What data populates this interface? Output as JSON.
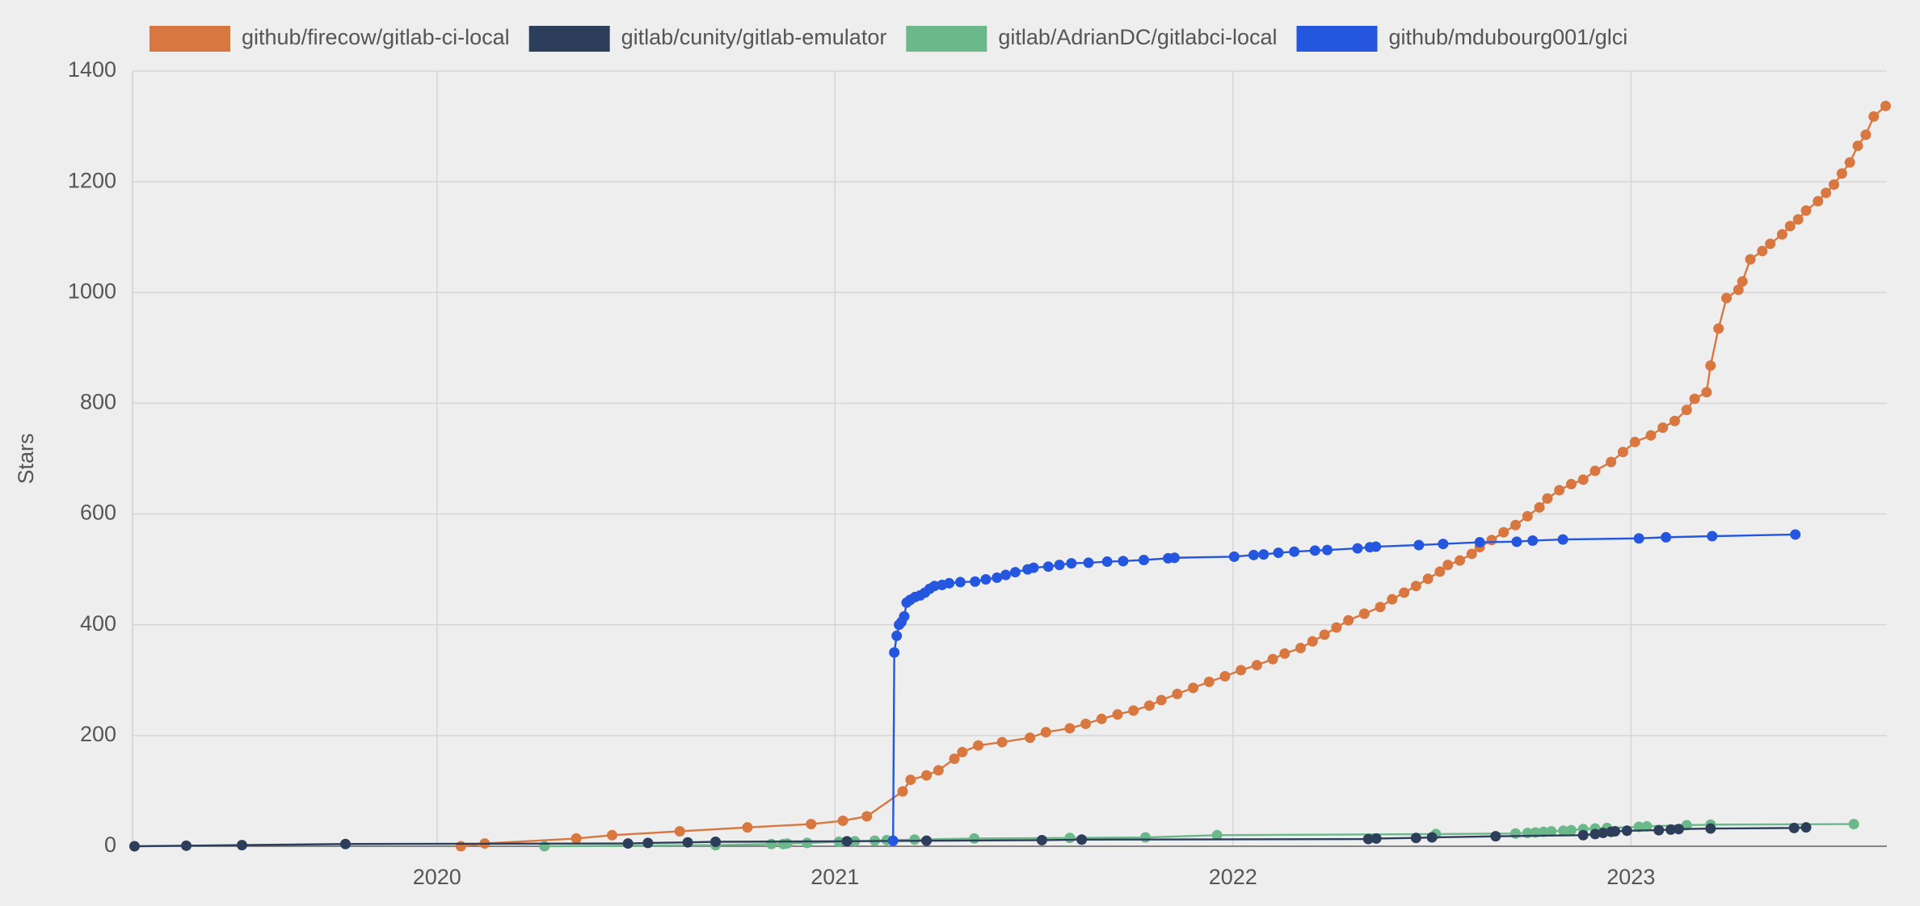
{
  "chart_data": {
    "type": "line",
    "y_label": "Stars",
    "legend": "top",
    "grid": true,
    "xlim": [
      2019.235,
      2023.643
    ],
    "xticks": [
      2020,
      2021,
      2022,
      2023
    ],
    "ylim": [
      0,
      1400
    ],
    "yticks": [
      0,
      200,
      400,
      600,
      800,
      1000,
      1200,
      1400
    ],
    "series": [
      {
        "name": "github/firecow/gitlab-ci-local",
        "color": "#d8773f",
        "x": [
          2020.06,
          2020.12,
          2020.35,
          2020.44,
          2020.61,
          2020.78,
          2020.94,
          2021.02,
          2021.08,
          2021.17,
          2021.19,
          2021.23,
          2021.26,
          2021.3,
          2021.32,
          2021.36,
          2021.42,
          2021.49,
          2021.53,
          2021.59,
          2021.63,
          2021.67,
          2021.71,
          2021.75,
          2021.79,
          2021.82,
          2021.86,
          2021.9,
          2021.94,
          2021.98,
          2022.02,
          2022.06,
          2022.1,
          2022.13,
          2022.17,
          2022.2,
          2022.23,
          2022.26,
          2022.29,
          2022.33,
          2022.37,
          2022.4,
          2022.43,
          2022.46,
          2022.49,
          2022.52,
          2022.54,
          2022.57,
          2022.6,
          2022.62,
          2022.65,
          2022.68,
          2022.71,
          2022.74,
          2022.77,
          2022.79,
          2022.82,
          2022.85,
          2022.88,
          2022.91,
          2022.95,
          2022.98,
          2023.01,
          2023.05,
          2023.08,
          2023.11,
          2023.14,
          2023.16,
          2023.19,
          2023.2,
          2023.22,
          2023.24,
          2023.27,
          2023.28,
          2023.3,
          2023.33,
          2023.35,
          2023.38,
          2023.4,
          2023.42,
          2023.44,
          2023.47,
          2023.49,
          2023.51,
          2023.53,
          2023.55,
          2023.57,
          2023.59,
          2023.61,
          2023.64
        ],
        "values": [
          0,
          5,
          14,
          20,
          27,
          34,
          40,
          46,
          54,
          99,
          120,
          128,
          137,
          158,
          170,
          182,
          188,
          196,
          206,
          213,
          221,
          230,
          238,
          245,
          254,
          264,
          275,
          286,
          297,
          307,
          318,
          327,
          338,
          348,
          358,
          370,
          382,
          395,
          408,
          420,
          432,
          446,
          458,
          470,
          483,
          496,
          508,
          516,
          528,
          540,
          553,
          567,
          580,
          596,
          612,
          628,
          643,
          654,
          662,
          678,
          694,
          712,
          730,
          742,
          756,
          768,
          788,
          808,
          820,
          868,
          935,
          990,
          1005,
          1020,
          1060,
          1075,
          1088,
          1105,
          1120,
          1132,
          1148,
          1165,
          1180,
          1195,
          1215,
          1235,
          1265,
          1285,
          1318,
          1337
        ]
      },
      {
        "name": "gitlab/cunity/gitlab-emulator",
        "color": "#2c3e5a",
        "x": [
          2019.24,
          2019.37,
          2019.51,
          2019.77,
          2020.48,
          2020.53,
          2020.63,
          2020.7,
          2021.03,
          2021.23,
          2021.52,
          2021.62,
          2022.34,
          2022.36,
          2022.46,
          2022.5,
          2022.66,
          2022.88,
          2022.91,
          2022.93,
          2022.95,
          2022.96,
          2022.99,
          2023.07,
          2023.1,
          2023.12,
          2023.2,
          2023.41,
          2023.44
        ],
        "values": [
          0,
          1,
          2,
          4,
          5,
          6,
          7,
          8,
          9,
          10,
          11,
          12,
          13,
          14,
          15,
          16,
          18,
          20,
          22,
          24,
          26,
          27,
          28,
          29,
          30,
          31,
          32,
          33,
          34
        ]
      },
      {
        "name": "gitlab/AdrianDC/gitlabci-local",
        "color": "#6bb88a",
        "x": [
          2020.27,
          2020.7,
          2020.84,
          2020.87,
          2020.88,
          2020.93,
          2021.01,
          2021.05,
          2021.1,
          2021.13,
          2021.2,
          2021.35,
          2021.59,
          2021.78,
          2021.96,
          2022.51,
          2022.71,
          2022.74,
          2022.76,
          2022.78,
          2022.8,
          2022.83,
          2022.85,
          2022.88,
          2022.91,
          2022.94,
          2023.02,
          2023.04,
          2023.14,
          2023.2,
          2023.56
        ],
        "values": [
          0,
          2,
          4,
          4,
          5,
          6,
          8,
          9,
          10,
          11,
          12,
          14,
          15,
          16,
          20,
          22,
          23,
          24,
          25,
          26,
          27,
          28,
          29,
          31,
          32,
          33,
          35,
          36,
          38,
          39,
          40
        ]
      },
      {
        "name": "github/mdubourg001/glci",
        "color": "#2456e0",
        "x": [
          2021.146,
          2021.149,
          2021.155,
          2021.161,
          2021.167,
          2021.174,
          2021.18,
          2021.189,
          2021.201,
          2021.214,
          2021.226,
          2021.238,
          2021.25,
          2021.269,
          2021.287,
          2021.315,
          2021.352,
          2021.379,
          2021.407,
          2021.429,
          2021.453,
          2021.484,
          2021.499,
          2021.536,
          2021.564,
          2021.594,
          2021.637,
          2021.684,
          2021.724,
          2021.776,
          2021.837,
          2021.853,
          2022.003,
          2022.052,
          2022.077,
          2022.114,
          2022.154,
          2022.206,
          2022.237,
          2022.313,
          2022.344,
          2022.359,
          2022.467,
          2022.528,
          2022.62,
          2022.713,
          2022.753,
          2022.829,
          2023.02,
          2023.088,
          2023.204,
          2023.413
        ],
        "values": [
          10,
          350,
          380,
          400,
          405,
          415,
          440,
          445,
          450,
          453,
          458,
          465,
          470,
          472,
          475,
          477,
          478,
          482,
          485,
          490,
          495,
          500,
          503,
          505,
          508,
          511,
          512,
          514,
          515,
          517,
          520,
          521,
          523,
          526,
          527,
          530,
          532,
          534,
          535,
          538,
          540,
          541,
          544,
          546,
          549,
          550,
          552,
          554,
          556,
          558,
          560,
          563
        ]
      }
    ]
  }
}
